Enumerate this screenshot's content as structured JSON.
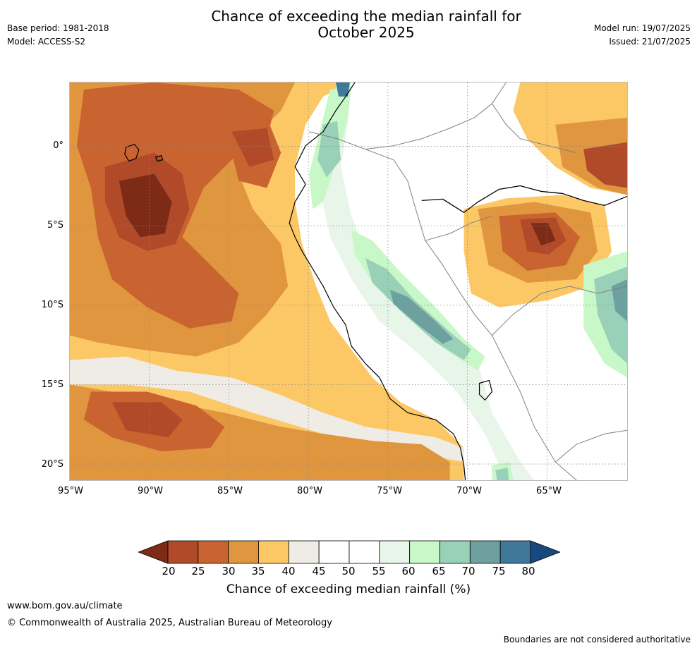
{
  "header": {
    "title_line1": "Chance of exceeding the median rainfall for",
    "title_line2": "October 2025",
    "base_period": "Base period: 1981-2018",
    "model": "Model: ACCESS-S2",
    "model_run": "Model run: 19/07/2025",
    "issued": "Issued: 21/07/2025"
  },
  "map": {
    "lat_labels": [
      "0°",
      "5°S",
      "10°S",
      "15°S",
      "20°S"
    ],
    "lon_labels": [
      "95°W",
      "90°W",
      "85°W",
      "80°W",
      "75°W",
      "70°W",
      "65°W"
    ],
    "extent": {
      "lon_min": -95,
      "lon_max": -60,
      "lat_min": -21,
      "lat_max": 4
    }
  },
  "colorbar": {
    "label": "Chance of exceeding median rainfall (%)",
    "ticks": [
      "20",
      "25",
      "30",
      "35",
      "40",
      "45",
      "50",
      "55",
      "60",
      "65",
      "70",
      "75",
      "80"
    ],
    "colors": [
      "#7d2a16",
      "#b14a28",
      "#c9632f",
      "#e0953f",
      "#fcc866",
      "#efebe5",
      "#ffffff",
      "#ffffff",
      "#e8f5e9",
      "#c8f7c8",
      "#99d0b8",
      "#6da09e",
      "#3f7898",
      "#17497e"
    ]
  },
  "footer": {
    "website": "www.bom.gov.au/climate",
    "copyright": "© Commonwealth of Australia 2025, Australian Bureau of Meteorology",
    "disclaimer": "Boundaries are not considered authoritative"
  }
}
